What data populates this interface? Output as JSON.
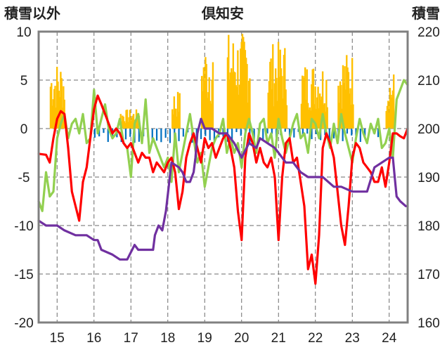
{
  "chart_data": {
    "type": "line",
    "title": "倶知安",
    "ylabel_left": "積雪以外",
    "ylabel_right": "積雪",
    "ylim_left": [
      -20,
      10
    ],
    "ylim_right": [
      160,
      220
    ],
    "yticks_left": [
      "10",
      "5",
      "0",
      "-5",
      "-10",
      "-15",
      "-20"
    ],
    "yticks_right": [
      "220",
      "210",
      "200",
      "190",
      "180",
      "170",
      "160"
    ],
    "xlim": [
      14.5,
      24.5
    ],
    "xticks": [
      "15",
      "16",
      "17",
      "18",
      "19",
      "20",
      "21",
      "22",
      "23",
      "24"
    ],
    "grid": "dashed",
    "colors": {
      "red_series": "#ff0000",
      "green_series": "#92d050",
      "purple_series": "#7030a0",
      "precip_positive": "#ffc000",
      "precip_negative": "#0070c0",
      "frame": "#808080"
    },
    "series": [
      {
        "color": "red",
        "x": [
          14.5,
          14.7,
          14.8,
          14.9,
          15.0,
          15.1,
          15.2,
          15.3,
          15.4,
          15.5,
          15.6,
          15.7,
          15.8,
          15.9,
          16.0,
          16.1,
          16.2,
          16.3,
          16.4,
          16.5,
          16.6,
          16.7,
          16.8,
          16.9,
          17.0,
          17.1,
          17.2,
          17.3,
          17.4,
          17.5,
          17.6,
          17.7,
          17.8,
          17.9,
          18.0,
          18.1,
          18.2,
          18.3,
          18.4,
          18.5,
          18.6,
          18.7,
          18.8,
          18.9,
          19.0,
          19.1,
          19.2,
          19.3,
          19.4,
          19.5,
          19.6,
          19.7,
          19.8,
          19.9,
          20.0,
          20.1,
          20.2,
          20.3,
          20.4,
          20.5,
          20.6,
          20.7,
          20.8,
          20.9,
          21.0,
          21.1,
          21.2,
          21.3,
          21.4,
          21.5,
          21.6,
          21.7,
          21.8,
          21.9,
          22.0,
          22.1,
          22.2,
          22.3,
          22.4,
          22.5,
          22.6,
          22.7,
          22.8,
          22.9,
          23.0,
          23.1,
          23.2,
          23.3,
          23.4,
          23.5,
          23.6,
          23.7,
          23.8,
          23.9,
          24.0,
          24.1,
          24.2,
          24.3,
          24.4,
          24.5
        ],
        "values": [
          -2.6,
          -2.7,
          -3.5,
          -1.0,
          1.0,
          1.8,
          1.5,
          -2.0,
          -6.5,
          -8.0,
          -9.5,
          -5.5,
          -4.0,
          -1.0,
          2.0,
          3.4,
          2.5,
          1.5,
          0.5,
          -0.5,
          0.0,
          -0.5,
          -1.5,
          -2.0,
          -1.5,
          -2.5,
          -3.5,
          -2.5,
          -3.0,
          -3.0,
          -4.5,
          -3.5,
          -4.0,
          -4.5,
          -3.5,
          -3.0,
          -4.5,
          -8.3,
          -6.5,
          -3.0,
          -1.5,
          -0.5,
          -2.0,
          -3.5,
          -1.0,
          -2.0,
          -1.5,
          -3.0,
          -2.0,
          -1.0,
          -0.5,
          -2.0,
          -4.0,
          -8.5,
          -11.5,
          -3.0,
          -0.5,
          -1.5,
          -3.5,
          -2.0,
          -3.5,
          -4.0,
          -3.0,
          -5.0,
          -11.5,
          -5.0,
          -1.5,
          -1.0,
          -3.5,
          -3.0,
          -5.5,
          -8.0,
          -14.5,
          -13.0,
          -16.0,
          -11.0,
          -2.0,
          -0.5,
          -1.5,
          -3.0,
          -6.5,
          -10.0,
          -12.0,
          -8.0,
          -3.0,
          -1.5,
          -2.0,
          -3.5,
          -4.0,
          -4.5,
          -5.5,
          -5.5,
          -4.0,
          -6.0,
          -3.5,
          -0.5,
          -0.5,
          -0.8,
          -1.0,
          0.0
        ]
      },
      {
        "color": "green",
        "x": [
          14.5,
          14.6,
          14.7,
          14.8,
          14.9,
          15.0,
          15.1,
          15.2,
          15.3,
          15.4,
          15.5,
          15.6,
          15.7,
          15.8,
          15.9,
          16.0,
          16.1,
          16.2,
          16.3,
          16.4,
          16.5,
          16.6,
          16.7,
          16.8,
          16.9,
          17.0,
          17.1,
          17.2,
          17.3,
          17.4,
          17.5,
          17.6,
          17.7,
          17.8,
          17.9,
          18.0,
          18.1,
          18.2,
          18.3,
          18.4,
          18.5,
          18.6,
          18.7,
          18.8,
          18.9,
          19.0,
          19.1,
          19.2,
          19.3,
          19.4,
          19.5,
          19.6,
          19.7,
          19.8,
          19.9,
          20.0,
          20.1,
          20.2,
          20.3,
          20.4,
          20.5,
          20.6,
          20.7,
          20.8,
          20.9,
          21.0,
          21.1,
          21.2,
          21.3,
          21.4,
          21.5,
          21.6,
          21.7,
          21.8,
          21.9,
          22.0,
          22.1,
          22.2,
          22.3,
          22.4,
          22.5,
          22.6,
          22.7,
          22.8,
          22.9,
          23.0,
          23.1,
          23.2,
          23.3,
          23.4,
          23.5,
          23.6,
          23.7,
          23.8,
          23.9,
          24.0,
          24.1,
          24.2,
          24.3,
          24.4,
          24.5
        ],
        "values": [
          -7.5,
          -8.5,
          -4.5,
          -7.0,
          -6.5,
          -1.0,
          0.5,
          1.5,
          -1.0,
          0.5,
          1.0,
          -0.5,
          1.5,
          -1.5,
          -1.0,
          4.0,
          -0.5,
          1.0,
          2.5,
          0.0,
          -1.0,
          -0.5,
          1.0,
          -1.5,
          -2.0,
          -5.0,
          0.5,
          1.5,
          -1.5,
          3.0,
          -2.5,
          -1.0,
          -2.0,
          -3.0,
          -4.0,
          -3.0,
          -5.5,
          -0.5,
          -4.5,
          -2.5,
          -0.5,
          1.5,
          -1.0,
          -3.5,
          -2.5,
          -6.0,
          -4.0,
          -2.0,
          -1.0,
          -0.5,
          1.0,
          -2.5,
          -1.0,
          -2.5,
          -1.5,
          -4.0,
          -0.5,
          1.0,
          -0.5,
          -2.5,
          0.5,
          1.0,
          -1.5,
          -0.5,
          -3.0,
          1.0,
          -1.0,
          -2.5,
          -1.0,
          0.5,
          1.5,
          -1.0,
          -0.5,
          -2.5,
          1.0,
          0.5,
          -1.0,
          1.5,
          -0.5,
          -2.0,
          0.5,
          -1.5,
          1.5,
          -0.5,
          -2.0,
          -3.5,
          -1.0,
          1.0,
          -0.5,
          -1.5,
          0.5,
          -0.5,
          1.0,
          -2.0,
          -1.5,
          0.0,
          -3.0,
          3.0,
          4.0,
          5.0,
          4.5
        ]
      },
      {
        "color": "purple",
        "x": [
          14.5,
          14.7,
          15.0,
          15.2,
          15.5,
          15.8,
          16.0,
          16.1,
          16.2,
          16.5,
          16.7,
          16.9,
          17.1,
          17.2,
          17.4,
          17.6,
          17.65,
          17.75,
          17.85,
          17.95,
          18.1,
          18.3,
          18.4,
          18.5,
          18.6,
          18.65,
          18.7,
          18.75,
          18.8,
          18.9,
          19.0,
          19.2,
          19.4,
          19.6,
          19.8,
          20.0,
          20.2,
          20.4,
          20.5,
          20.7,
          20.9,
          21.0,
          21.2,
          21.4,
          21.6,
          21.8,
          22.0,
          22.2,
          22.5,
          22.7,
          23.0,
          23.2,
          23.4,
          23.6,
          23.8,
          24.0,
          24.1,
          24.15,
          24.2,
          24.3,
          24.45,
          24.5
        ],
        "values": [
          181,
          180,
          180,
          179,
          178,
          178,
          177,
          177,
          175,
          174,
          173,
          173,
          176,
          175,
          175,
          175,
          178,
          180,
          179,
          183,
          193,
          192,
          191,
          189,
          189,
          190,
          191,
          194,
          199,
          202,
          200,
          200,
          199,
          199,
          197,
          194,
          197,
          196,
          198,
          197,
          196,
          195,
          193,
          193,
          191,
          190,
          190,
          190,
          188,
          188,
          187,
          187,
          187,
          192,
          193,
          194,
          194,
          190,
          186,
          185,
          184,
          184
        ]
      }
    ]
  }
}
